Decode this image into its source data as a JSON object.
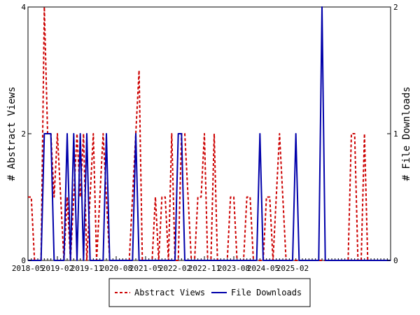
{
  "chart_data": {
    "type": "line",
    "title": "",
    "ylabel_left": "# Abstract Views",
    "ylabel_right": "# File Downloads",
    "ylim_left": [
      0,
      4
    ],
    "ylim_right": [
      0,
      2
    ],
    "yticks_left": [
      "0",
      "2",
      "4"
    ],
    "yticks_right": [
      "0",
      "1",
      "2"
    ],
    "x_start": "2018-05",
    "x_ticks": [
      "2018-05",
      "2019-02",
      "2019-11",
      "2020-08",
      "2021-05",
      "2022-02",
      "2022-11",
      "2023-08",
      "2024-05",
      "2025-02"
    ],
    "grid": false,
    "legend_position": "bottom",
    "series": [
      {
        "name": "Abstract Views",
        "axis": "left",
        "color": "#cc0000",
        "style": "dashed",
        "values": [
          1,
          1,
          0,
          0,
          0,
          4,
          2,
          2,
          1,
          2,
          1,
          0,
          1,
          0,
          1,
          2,
          1,
          2,
          0,
          1,
          2,
          0,
          1,
          2,
          1,
          0,
          0,
          0,
          0,
          0,
          0,
          0,
          1,
          2,
          3,
          0,
          0,
          0,
          0,
          1,
          0,
          1,
          1,
          0,
          2,
          0,
          0,
          2,
          2,
          1,
          0,
          0,
          1,
          1,
          2,
          0,
          0,
          2,
          0,
          0,
          0,
          0,
          1,
          1,
          0,
          0,
          0,
          1,
          1,
          0,
          0,
          0,
          0,
          1,
          1,
          0,
          1,
          2,
          1,
          0,
          0,
          0,
          0,
          0,
          0,
          0,
          0,
          0,
          0,
          0,
          0,
          0,
          0,
          0,
          0,
          0,
          0,
          0,
          0,
          2,
          2,
          0,
          0,
          2,
          0,
          0,
          0,
          0,
          0,
          0,
          0,
          0
        ]
      },
      {
        "name": "File Downloads",
        "axis": "right",
        "color": "#0000aa",
        "style": "solid",
        "values": [
          0,
          0,
          0,
          0,
          0,
          1,
          1,
          1,
          0,
          0,
          0,
          0,
          1,
          0,
          1,
          0,
          1,
          0,
          1,
          0,
          0,
          0,
          0,
          0,
          1,
          0,
          0,
          0,
          0,
          0,
          0,
          0,
          0,
          1,
          0,
          0,
          0,
          0,
          0,
          0,
          0,
          0,
          0,
          0,
          0,
          0,
          1,
          1,
          0,
          0,
          0,
          0,
          0,
          0,
          0,
          0,
          0,
          0,
          0,
          0,
          0,
          0,
          0,
          0,
          0,
          0,
          0,
          0,
          0,
          0,
          0,
          1,
          0,
          0,
          0,
          0,
          0,
          0,
          0,
          0,
          0,
          0,
          1,
          0,
          0,
          0,
          0,
          0,
          0,
          0,
          2,
          0,
          0,
          0,
          0,
          0,
          0,
          0,
          0,
          0,
          0,
          0,
          0,
          0,
          0,
          0,
          0,
          0,
          0,
          0,
          0,
          0
        ]
      }
    ]
  }
}
